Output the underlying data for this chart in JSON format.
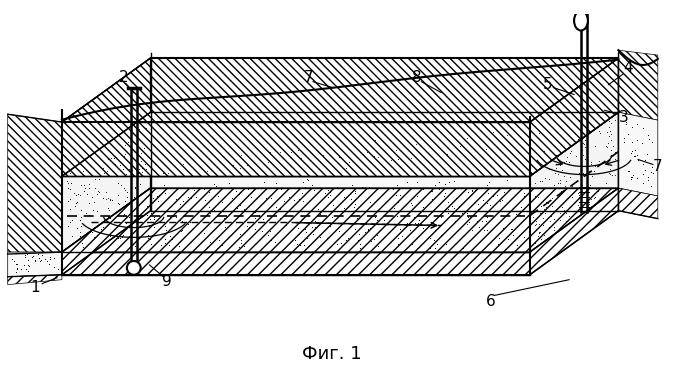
{
  "title": "Фиг. 1",
  "bg_color": "#ffffff",
  "line_color": "#000000",
  "fig_width": 6.99,
  "fig_height": 3.87,
  "dpi": 100
}
